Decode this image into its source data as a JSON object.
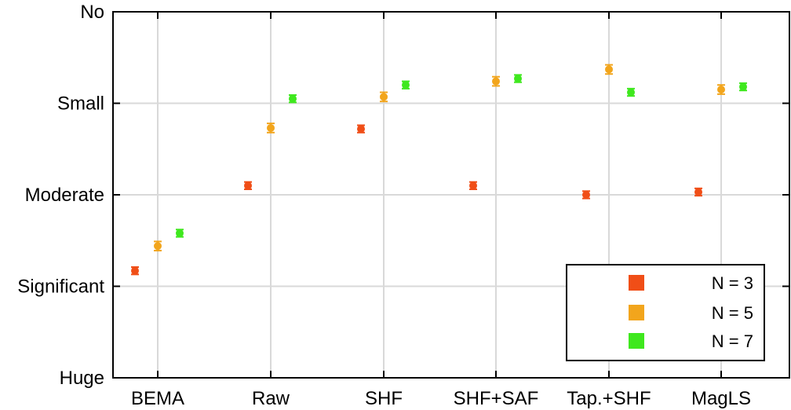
{
  "chart_data": {
    "type": "scatter",
    "categories": [
      "BEMA",
      "Raw",
      "SHF",
      "SHF+SAF",
      "Tap.+SHF",
      "MagLS"
    ],
    "y_levels": [
      "Huge",
      "Significant",
      "Moderate",
      "Small",
      "No"
    ],
    "ylim": [
      1,
      5
    ],
    "grid": true,
    "legend_position": "bottom-right",
    "series": [
      {
        "name": "N = 3",
        "color": "#f04e17",
        "values": [
          2.17,
          3.1,
          3.72,
          3.1,
          3.0,
          3.03
        ],
        "errors": [
          0.04,
          0.04,
          0.04,
          0.04,
          0.04,
          0.04
        ]
      },
      {
        "name": "N = 5",
        "color": "#f2a51c",
        "values": [
          2.44,
          3.73,
          4.07,
          4.24,
          4.37,
          4.15
        ],
        "errors": [
          0.05,
          0.05,
          0.05,
          0.05,
          0.05,
          0.05
        ]
      },
      {
        "name": "N = 7",
        "color": "#3fe81e",
        "values": [
          2.58,
          4.05,
          4.2,
          4.27,
          4.12,
          4.18
        ],
        "errors": [
          0.04,
          0.04,
          0.04,
          0.04,
          0.04,
          0.04
        ]
      }
    ]
  }
}
